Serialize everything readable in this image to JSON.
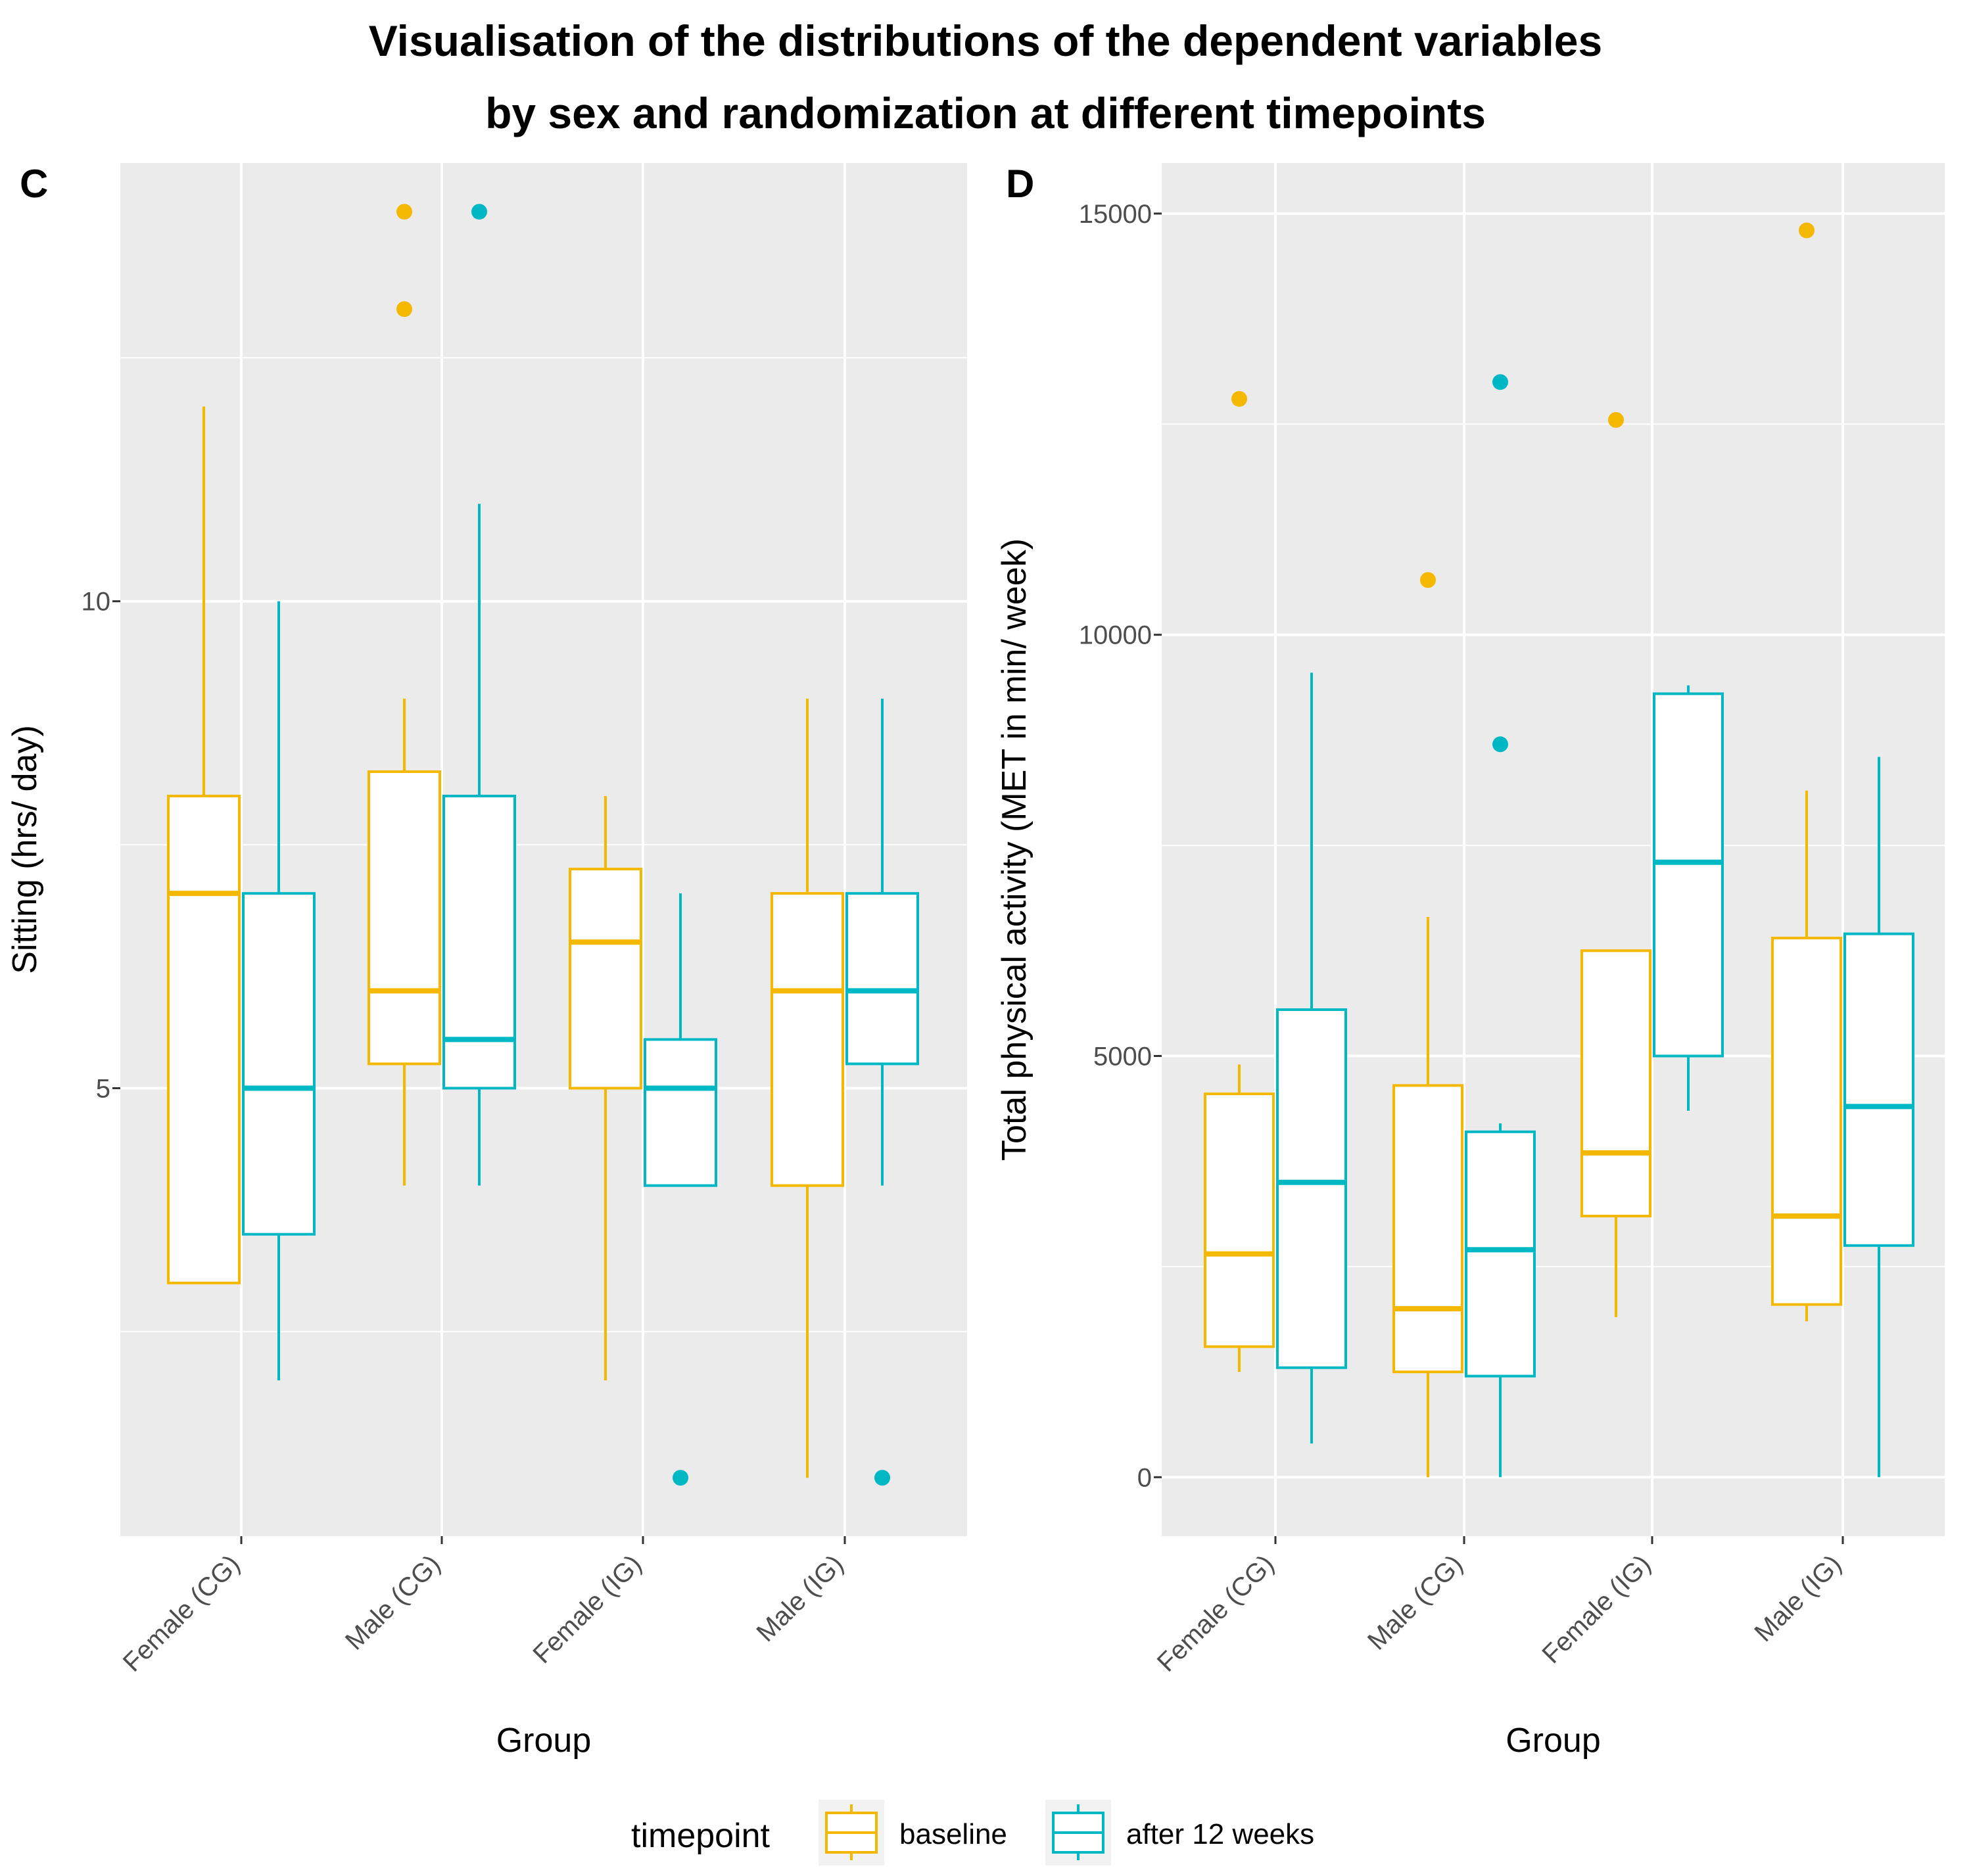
{
  "title_line1": "Visualisation of the distributions of the dependent variables",
  "title_line2": "by sex and randomization at different timepoints",
  "colors": {
    "baseline": "#F5B800",
    "after": "#00B8C4",
    "panel_bg": "#EBEBEB",
    "grid": "#FFFFFF"
  },
  "legend": {
    "title": "timepoint",
    "items": [
      "baseline",
      "after 12 weeks"
    ]
  },
  "chart_data": [
    {
      "panel": "C",
      "type": "boxplot",
      "xlabel": "Group",
      "ylabel": "Sitting (hrs/ day)",
      "categories": [
        "Female (CG)",
        "Male (CG)",
        "Female (IG)",
        "Male (IG)"
      ],
      "ylim": [
        0.4,
        14.5
      ],
      "yticks": [
        5,
        10
      ],
      "ytick_labels": [
        "5",
        "10"
      ],
      "yminor": [
        2.5,
        7.5,
        12.5
      ],
      "series": [
        {
          "name": "baseline",
          "boxes": [
            {
              "min": null,
              "q1": 3,
              "median": 7,
              "q3": 8,
              "max": 12,
              "outliers": []
            },
            {
              "min": 4,
              "q1": 5.25,
              "median": 6,
              "q3": 8.25,
              "max": 9,
              "outliers": [
                13,
                14
              ]
            },
            {
              "min": 2,
              "q1": 5,
              "median": 6.5,
              "q3": 7.25,
              "max": 8,
              "outliers": []
            },
            {
              "min": 1,
              "q1": 4,
              "median": 6,
              "q3": 7,
              "max": 9,
              "outliers": []
            }
          ]
        },
        {
          "name": "after 12 weeks",
          "boxes": [
            {
              "min": 2,
              "q1": 3.5,
              "median": 5,
              "q3": 7,
              "max": 10,
              "outliers": []
            },
            {
              "min": 4,
              "q1": 5,
              "median": 5.5,
              "q3": 8,
              "max": 11,
              "outliers": [
                14
              ]
            },
            {
              "min": null,
              "q1": 4,
              "median": 5,
              "q3": 5.5,
              "max": 7,
              "outliers": [
                1
              ]
            },
            {
              "min": 4,
              "q1": 5.25,
              "median": 6,
              "q3": 7,
              "max": 9,
              "outliers": [
                1
              ]
            }
          ]
        }
      ]
    },
    {
      "panel": "D",
      "type": "boxplot",
      "xlabel": "Group",
      "ylabel": "Total physical activity (MET in min/ week)",
      "categories": [
        "Female (CG)",
        "Male (CG)",
        "Female (IG)",
        "Male (IG)"
      ],
      "ylim": [
        -700,
        15600
      ],
      "yticks": [
        0,
        5000,
        10000,
        15000
      ],
      "ytick_labels": [
        "0",
        "5000",
        "10000",
        "15000"
      ],
      "yminor": [
        2500,
        7500,
        12500
      ],
      "series": [
        {
          "name": "baseline",
          "boxes": [
            {
              "min": 1250,
              "q1": 1550,
              "median": 2650,
              "q3": 4550,
              "max": 4900,
              "outliers": [
                12800
              ]
            },
            {
              "min": 0,
              "q1": 1250,
              "median": 2000,
              "q3": 4650,
              "max": 6650,
              "outliers": [
                10650
              ]
            },
            {
              "min": 1900,
              "q1": 3100,
              "median": 3850,
              "q3": 6250,
              "max": null,
              "outliers": [
                12550
              ]
            },
            {
              "min": 1850,
              "q1": 2050,
              "median": 3100,
              "q3": 6400,
              "max": 8150,
              "outliers": [
                14800
              ]
            }
          ]
        },
        {
          "name": "after 12 weeks",
          "boxes": [
            {
              "min": 400,
              "q1": 1300,
              "median": 3500,
              "q3": 5550,
              "max": 9550,
              "outliers": []
            },
            {
              "min": 0,
              "q1": 1200,
              "median": 2700,
              "q3": 4100,
              "max": 4200,
              "outliers": [
                8700,
                13000
              ]
            },
            {
              "min": 4350,
              "q1": 5000,
              "median": 7300,
              "q3": 9300,
              "max": 9400,
              "outliers": []
            },
            {
              "min": 0,
              "q1": 2750,
              "median": 4400,
              "q3": 6450,
              "max": 8550,
              "outliers": []
            }
          ]
        }
      ]
    }
  ]
}
